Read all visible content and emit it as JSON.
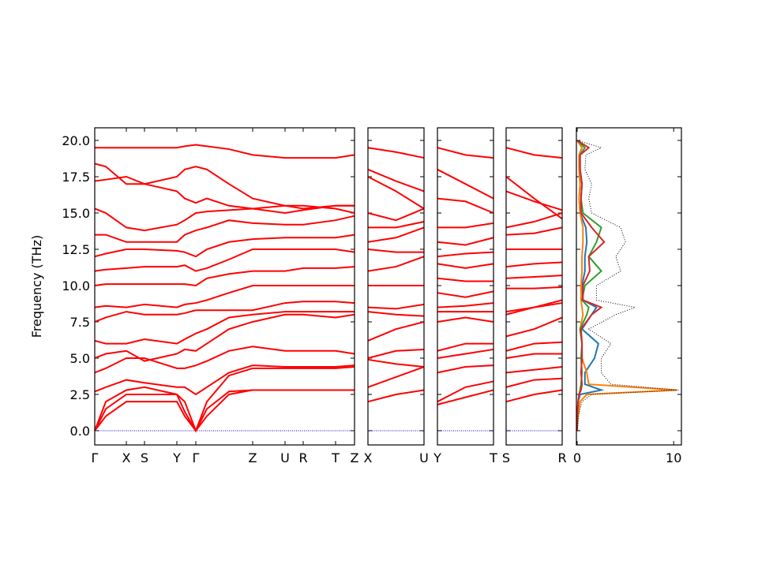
{
  "chart_data": [
    {
      "type": "line",
      "ylabel": "Frequency (THz)",
      "color": "#ff0000",
      "hline": 0,
      "hline_color": "#0000cc",
      "xlim": [
        0,
        329
      ],
      "ylim": [
        -0.98,
        20.87
      ],
      "xticks": [
        {
          "value": 0,
          "label": "Γ"
        },
        {
          "value": 40,
          "label": "X"
        },
        {
          "value": 63,
          "label": "S"
        },
        {
          "value": 104,
          "label": "Y"
        },
        {
          "value": 128,
          "label": "Γ"
        },
        {
          "value": 200,
          "label": "Z"
        },
        {
          "value": 241,
          "label": "U"
        },
        {
          "value": 264,
          "label": "R"
        },
        {
          "value": 305,
          "label": "T"
        },
        {
          "value": 329,
          "label": "Z"
        }
      ],
      "yticks": [
        {
          "value": 0,
          "label": "0.0"
        },
        {
          "value": 2.5,
          "label": "2.5"
        },
        {
          "value": 5,
          "label": "5.0"
        },
        {
          "value": 7.5,
          "label": "7.5"
        },
        {
          "value": 10,
          "label": "10.0"
        },
        {
          "value": 12.5,
          "label": "12.5"
        },
        {
          "value": 15,
          "label": "15.0"
        },
        {
          "value": 17.5,
          "label": "17.5"
        },
        {
          "value": 20,
          "label": "20.0"
        }
      ],
      "x": [
        0,
        14,
        40,
        63,
        104,
        114,
        128,
        142,
        170,
        200,
        241,
        264,
        305,
        329
      ],
      "series": [
        {
          "values": [
            0,
            1.0,
            2.0,
            2.0,
            2.0,
            1.0,
            0,
            1.0,
            2.5,
            2.8,
            2.8,
            2.8,
            2.8,
            2.8
          ]
        },
        {
          "values": [
            0,
            1.5,
            2.5,
            2.5,
            2.5,
            1.3,
            0,
            1.5,
            2.7,
            2.8,
            2.8,
            2.8,
            2.8,
            2.8
          ]
        },
        {
          "values": [
            0,
            2.0,
            2.8,
            3.0,
            2.5,
            2.0,
            0,
            2.0,
            3.8,
            4.3,
            4.3,
            4.3,
            4.3,
            4.4
          ]
        },
        {
          "values": [
            2.7,
            3.0,
            3.5,
            3.3,
            3.0,
            3.0,
            2.5,
            3.0,
            4.0,
            4.5,
            4.4,
            4.4,
            4.4,
            4.5
          ]
        },
        {
          "values": [
            4.0,
            4.3,
            5.0,
            5.0,
            4.3,
            4.3,
            4.5,
            4.8,
            5.5,
            5.8,
            5.5,
            5.5,
            5.5,
            5.3
          ]
        },
        {
          "values": [
            5.0,
            5.3,
            5.5,
            4.8,
            5.3,
            5.6,
            5.5,
            6.0,
            7.0,
            7.5,
            8.0,
            8.0,
            7.8,
            8.0
          ]
        },
        {
          "values": [
            6.2,
            6.0,
            6.0,
            6.3,
            6.0,
            6.3,
            6.7,
            7.0,
            7.8,
            8.0,
            8.2,
            8.2,
            8.2,
            8.2
          ]
        },
        {
          "values": [
            7.5,
            7.8,
            8.2,
            8.0,
            8.0,
            8.1,
            8.3,
            8.3,
            8.3,
            8.3,
            8.8,
            8.9,
            8.9,
            8.8
          ]
        },
        {
          "values": [
            8.5,
            8.6,
            8.5,
            8.7,
            8.5,
            8.7,
            8.8,
            9.0,
            9.5,
            10.0,
            10.0,
            10.0,
            10.0,
            10.0
          ]
        },
        {
          "values": [
            10.0,
            10.1,
            10.1,
            10.1,
            10.1,
            10.1,
            10.0,
            10.5,
            10.8,
            11.0,
            11.0,
            11.2,
            11.2,
            11.3
          ]
        },
        {
          "values": [
            11.0,
            11.1,
            11.2,
            11.3,
            11.3,
            11.4,
            11.0,
            11.2,
            11.8,
            12.5,
            12.5,
            12.5,
            12.5,
            12.3
          ]
        },
        {
          "values": [
            12.0,
            12.2,
            12.5,
            12.5,
            12.4,
            12.3,
            12.0,
            12.5,
            13.0,
            13.2,
            13.3,
            13.3,
            13.3,
            13.5
          ]
        },
        {
          "values": [
            13.5,
            13.5,
            13.0,
            13.0,
            13.0,
            13.5,
            13.8,
            14.0,
            14.5,
            14.3,
            14.2,
            14.2,
            14.5,
            14.8
          ]
        },
        {
          "values": [
            15.3,
            15.0,
            14.0,
            13.8,
            14.2,
            14.5,
            15.0,
            15.1,
            15.2,
            15.3,
            15.0,
            15.2,
            15.5,
            15.5
          ]
        },
        {
          "values": [
            17.2,
            17.3,
            17.5,
            17.0,
            16.5,
            16.0,
            15.7,
            16.0,
            15.5,
            15.3,
            15.5,
            15.5,
            15.3,
            15.0
          ]
        },
        {
          "values": [
            18.4,
            18.2,
            17.0,
            17.0,
            17.5,
            18.0,
            18.2,
            18.0,
            17.0,
            16.0,
            15.5,
            15.3,
            15.5,
            15.5
          ]
        },
        {
          "values": [
            19.5,
            19.5,
            19.5,
            19.5,
            19.5,
            19.6,
            19.7,
            19.6,
            19.4,
            19.0,
            18.8,
            18.8,
            18.8,
            19.0
          ]
        }
      ]
    },
    {
      "type": "line",
      "color": "#ff0000",
      "hline": 0,
      "hline_color": "#0000cc",
      "xlim": [
        0,
        71
      ],
      "ylim": [
        -0.98,
        20.87
      ],
      "xticks": [
        {
          "value": 0,
          "label": "X"
        },
        {
          "value": 71,
          "label": "U"
        }
      ],
      "yticks": [
        0,
        2.5,
        5,
        7.5,
        10,
        12.5,
        15,
        17.5,
        20
      ],
      "x": [
        0,
        35.5,
        71
      ],
      "series": [
        {
          "values": [
            2.0,
            2.5,
            2.8
          ]
        },
        {
          "values": [
            3.0,
            3.7,
            4.4
          ]
        },
        {
          "values": [
            4.9,
            4.6,
            4.4
          ]
        },
        {
          "values": [
            5.0,
            5.5,
            5.6
          ]
        },
        {
          "values": [
            6.2,
            7.0,
            7.5
          ]
        },
        {
          "values": [
            8.2,
            8.0,
            7.9
          ]
        },
        {
          "values": [
            8.5,
            8.4,
            8.7
          ]
        },
        {
          "values": [
            10.0,
            10.0,
            10.0
          ]
        },
        {
          "values": [
            11.0,
            11.3,
            12.0
          ]
        },
        {
          "values": [
            12.5,
            12.3,
            12.3
          ]
        },
        {
          "values": [
            13.0,
            13.3,
            14.0
          ]
        },
        {
          "values": [
            14.0,
            14.0,
            14.4
          ]
        },
        {
          "values": [
            15.0,
            14.5,
            15.3
          ]
        },
        {
          "values": [
            17.5,
            16.5,
            15.3
          ]
        },
        {
          "values": [
            18.0,
            17.2,
            16.5
          ]
        },
        {
          "values": [
            19.5,
            19.2,
            18.8
          ]
        }
      ]
    },
    {
      "type": "line",
      "color": "#ff0000",
      "hline": 0,
      "hline_color": "#0000cc",
      "xlim": [
        0,
        71
      ],
      "ylim": [
        -0.98,
        20.87
      ],
      "xticks": [
        {
          "value": 0,
          "label": "Y"
        },
        {
          "value": 71,
          "label": "T"
        }
      ],
      "yticks": [
        0,
        2.5,
        5,
        7.5,
        10,
        12.5,
        15,
        17.5,
        20
      ],
      "x": [
        0,
        35.5,
        71
      ],
      "series": [
        {
          "values": [
            1.8,
            2.3,
            2.8
          ]
        },
        {
          "values": [
            2.0,
            3.0,
            3.4
          ]
        },
        {
          "values": [
            4.0,
            4.4,
            4.5
          ]
        },
        {
          "values": [
            5.0,
            5.3,
            5.6
          ]
        },
        {
          "values": [
            5.5,
            6.0,
            6.0
          ]
        },
        {
          "values": [
            7.5,
            7.8,
            7.5
          ]
        },
        {
          "values": [
            8.2,
            8.2,
            8.2
          ]
        },
        {
          "values": [
            8.5,
            8.6,
            8.8
          ]
        },
        {
          "values": [
            9.5,
            9.2,
            9.6
          ]
        },
        {
          "values": [
            10.5,
            10.3,
            10.3
          ]
        },
        {
          "values": [
            11.5,
            11.2,
            11.5
          ]
        },
        {
          "values": [
            12.0,
            12.2,
            12.3
          ]
        },
        {
          "values": [
            13.0,
            12.8,
            13.3
          ]
        },
        {
          "values": [
            14.0,
            14.0,
            14.3
          ]
        },
        {
          "values": [
            16.0,
            15.8,
            15.0
          ]
        },
        {
          "values": [
            18.0,
            17.0,
            16.0
          ]
        },
        {
          "values": [
            19.5,
            19.0,
            18.8
          ]
        }
      ]
    },
    {
      "type": "line",
      "color": "#ff0000",
      "hline": 0,
      "hline_color": "#0000cc",
      "xlim": [
        0,
        71
      ],
      "ylim": [
        -0.98,
        20.87
      ],
      "xticks": [
        {
          "value": 0,
          "label": "S"
        },
        {
          "value": 71,
          "label": "R"
        }
      ],
      "yticks": [
        0,
        2.5,
        5,
        7.5,
        10,
        12.5,
        15,
        17.5,
        20
      ],
      "x": [
        0,
        35.5,
        71
      ],
      "series": [
        {
          "values": [
            2.0,
            2.5,
            2.8
          ]
        },
        {
          "values": [
            3.0,
            3.5,
            3.6
          ]
        },
        {
          "values": [
            4.0,
            4.2,
            4.4
          ]
        },
        {
          "values": [
            5.0,
            5.3,
            5.3
          ]
        },
        {
          "values": [
            5.5,
            6.0,
            6.1
          ]
        },
        {
          "values": [
            6.5,
            7.0,
            7.8
          ]
        },
        {
          "values": [
            8.0,
            8.5,
            8.8
          ]
        },
        {
          "values": [
            8.2,
            8.5,
            9.0
          ]
        },
        {
          "values": [
            9.8,
            9.8,
            9.9
          ]
        },
        {
          "values": [
            10.5,
            10.6,
            10.7
          ]
        },
        {
          "values": [
            11.3,
            11.5,
            11.6
          ]
        },
        {
          "values": [
            12.5,
            12.5,
            12.5
          ]
        },
        {
          "values": [
            13.5,
            13.6,
            14.0
          ]
        },
        {
          "values": [
            14.0,
            14.4,
            15.0
          ]
        },
        {
          "values": [
            16.5,
            15.8,
            15.2
          ]
        },
        {
          "values": [
            17.5,
            16.0,
            14.6
          ]
        },
        {
          "values": [
            19.5,
            19.0,
            18.8
          ]
        }
      ]
    },
    {
      "type": "dos",
      "xlim": [
        -0.08,
        10.8
      ],
      "ylim": [
        -0.98,
        20.87
      ],
      "xticks": [
        0,
        10
      ],
      "yticks": [
        0,
        2.5,
        5,
        7.5,
        10,
        12.5,
        15,
        17.5,
        20
      ],
      "y": [
        0,
        1,
        2,
        2.5,
        2.8,
        3.2,
        4,
        5,
        6,
        7,
        8,
        8.5,
        9,
        10,
        11,
        12,
        13,
        14,
        15,
        16,
        17,
        18,
        19,
        19.5,
        20
      ],
      "series": [
        {
          "color": "#1f77b4",
          "x": [
            0,
            0,
            0.1,
            0.3,
            2.5,
            0.8,
            0.8,
            1.8,
            2.2,
            0.5,
            1.5,
            2.0,
            0.6,
            0.5,
            0.8,
            0.8,
            1.0,
            0.9,
            0.3,
            0.2,
            0.3,
            0.2,
            0.2,
            0.5,
            0
          ]
        },
        {
          "color": "#ff7f0e",
          "x": [
            0,
            0.1,
            0.3,
            1.0,
            10.3,
            1.2,
            1.0,
            0.5,
            0.5,
            0.3,
            0.6,
            0.5,
            0.4,
            0.4,
            0.5,
            0.5,
            0.6,
            0.6,
            0.3,
            0.2,
            0.3,
            0.2,
            0.2,
            0.5,
            0
          ]
        },
        {
          "color": "#2ca02c",
          "x": [
            0,
            0,
            0.1,
            0.2,
            0.3,
            0.4,
            0.5,
            0.4,
            0.5,
            0.3,
            1.0,
            1.2,
            0.5,
            0.8,
            2.5,
            1.2,
            2.0,
            2.5,
            0.6,
            0.4,
            0.5,
            0.3,
            0.3,
            0.8,
            0
          ]
        },
        {
          "color": "#d62728",
          "x": [
            0,
            0,
            0.1,
            0.2,
            0.4,
            0.5,
            0.4,
            0.5,
            0.5,
            0.4,
            1.5,
            2.5,
            0.6,
            0.6,
            1.3,
            1.2,
            2.8,
            1.5,
            0.4,
            0.4,
            0.5,
            0.3,
            0.3,
            1.2,
            0
          ]
        },
        {
          "color": "#000000",
          "linestyle": "dotted",
          "x": [
            0,
            0.1,
            0.5,
            1.5,
            10.5,
            3.5,
            2.5,
            2.5,
            3.5,
            1.2,
            4.0,
            6.0,
            2.0,
            2.0,
            4.5,
            4.0,
            5.0,
            4.5,
            1.5,
            1.2,
            1.5,
            0.8,
            0.9,
            2.5,
            0
          ]
        }
      ]
    }
  ]
}
